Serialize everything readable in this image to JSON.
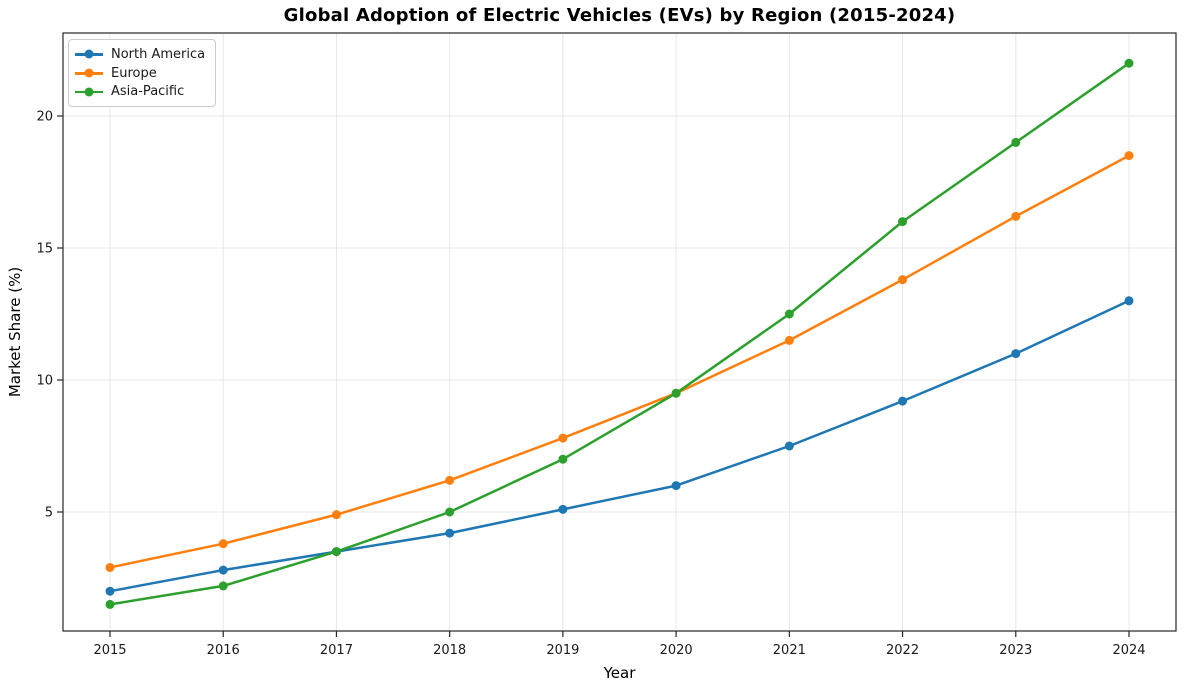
{
  "figure": {
    "title": "Global Adoption of Electric Vehicles (EVs) by Region (2015-2024)",
    "xlabel": "Year",
    "ylabel": "Market Share (%)"
  },
  "chart_data": {
    "type": "line",
    "title": "Global Adoption of Electric Vehicles (EVs) by Region (2015-2024)",
    "xlabel": "Year",
    "ylabel": "Market Share (%)",
    "categories": [
      "2015",
      "2016",
      "2017",
      "2018",
      "2019",
      "2020",
      "2021",
      "2022",
      "2023",
      "2024"
    ],
    "series": [
      {
        "name": "North America",
        "color": "#1f77b4",
        "values": [
          2.0,
          2.8,
          3.5,
          4.2,
          5.1,
          6.0,
          7.5,
          9.2,
          11.0,
          13.0
        ]
      },
      {
        "name": "Europe",
        "color": "#ff7f0e",
        "values": [
          2.9,
          3.8,
          4.9,
          6.2,
          7.8,
          9.5,
          11.5,
          13.8,
          16.2,
          18.5
        ]
      },
      {
        "name": "Asia-Pacific",
        "color": "#2ca02c",
        "values": [
          1.5,
          2.2,
          3.5,
          5.0,
          7.0,
          9.5,
          12.5,
          16.0,
          19.0,
          22.0
        ]
      }
    ],
    "y_ticks": [
      5,
      10,
      15,
      20
    ],
    "ylim": [
      0.5,
      23.1
    ],
    "grid": true,
    "legend_position": "upper left",
    "spine_color": "#262626",
    "grid_color": "#e7e7e7",
    "tick_label_color": "#1a1a1a"
  }
}
